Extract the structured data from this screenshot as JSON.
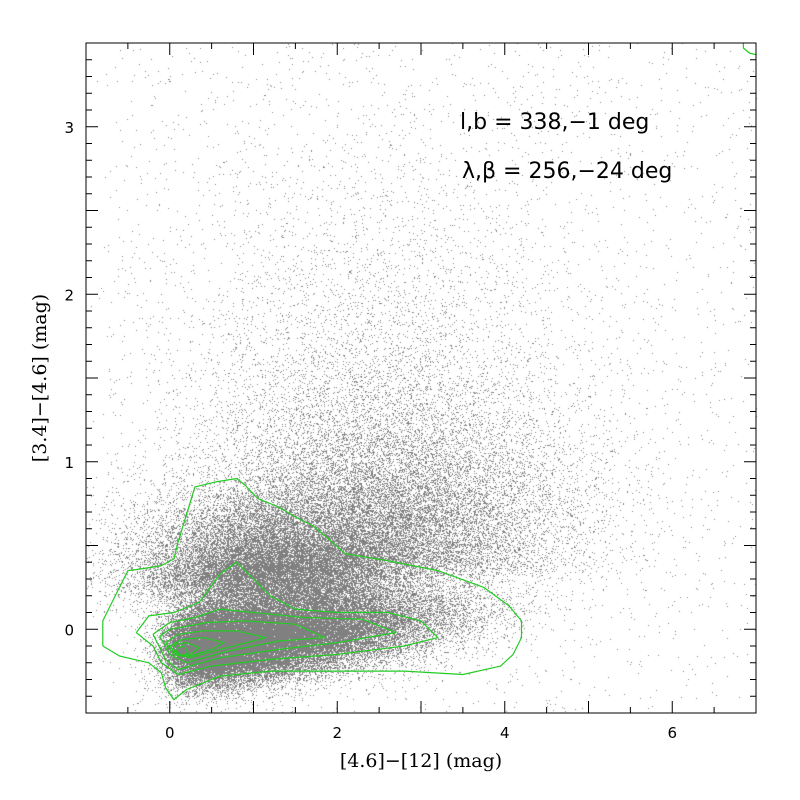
{
  "chart_data": {
    "type": "scatter",
    "title": "",
    "xlabel": "[4.6]−[12] (mag)",
    "ylabel": "[3.4]−[4.6] (mag)",
    "xlim": [
      -1,
      7
    ],
    "ylim": [
      -0.5,
      3.5
    ],
    "x_ticks": [
      0,
      2,
      4,
      6
    ],
    "y_ticks": [
      0,
      1,
      2,
      3
    ],
    "x_tick_labels": [
      "0",
      "2",
      "4",
      "6"
    ],
    "y_tick_labels": [
      "0",
      "1",
      "2",
      "3"
    ],
    "point_color": "#808080",
    "contour_color": "#22cc22",
    "annotations": [
      "l,b = 338,−1 deg",
      "λ,β = 256,−24 deg"
    ],
    "density_peak": {
      "x": 0.15,
      "y": -0.12
    },
    "contours": [
      {
        "level": 1,
        "points": [
          [
            -0.8,
            -0.1
          ],
          [
            -0.6,
            -0.16
          ],
          [
            -0.25,
            -0.2
          ],
          [
            -0.1,
            -0.26
          ],
          [
            -0.05,
            -0.35
          ],
          [
            0.05,
            -0.42
          ],
          [
            0.2,
            -0.36
          ],
          [
            0.6,
            -0.28
          ],
          [
            1.2,
            -0.25
          ],
          [
            2.0,
            -0.25
          ],
          [
            2.8,
            -0.25
          ],
          [
            3.5,
            -0.27
          ],
          [
            3.95,
            -0.22
          ],
          [
            4.1,
            -0.15
          ],
          [
            4.2,
            -0.05
          ],
          [
            4.2,
            0.05
          ],
          [
            4.05,
            0.14
          ],
          [
            3.75,
            0.25
          ],
          [
            3.2,
            0.35
          ],
          [
            2.6,
            0.41
          ],
          [
            2.1,
            0.45
          ],
          [
            1.85,
            0.56
          ],
          [
            1.7,
            0.62
          ],
          [
            1.5,
            0.67
          ],
          [
            1.3,
            0.73
          ],
          [
            1.05,
            0.78
          ],
          [
            0.9,
            0.86
          ],
          [
            0.8,
            0.9
          ],
          [
            0.55,
            0.88
          ],
          [
            0.3,
            0.85
          ],
          [
            0.1,
            0.52
          ],
          [
            0.05,
            0.42
          ],
          [
            -0.1,
            0.38
          ],
          [
            -0.35,
            0.36
          ],
          [
            -0.5,
            0.35
          ],
          [
            -0.55,
            0.3
          ],
          [
            -0.7,
            0.15
          ],
          [
            -0.8,
            0.05
          ],
          [
            -0.8,
            -0.1
          ]
        ]
      },
      {
        "level": 2,
        "points": [
          [
            -0.4,
            -0.02
          ],
          [
            -0.2,
            -0.1
          ],
          [
            -0.1,
            -0.2
          ],
          [
            0.1,
            -0.27
          ],
          [
            0.5,
            -0.22
          ],
          [
            1.2,
            -0.18
          ],
          [
            2.0,
            -0.15
          ],
          [
            2.8,
            -0.1
          ],
          [
            3.2,
            -0.05
          ],
          [
            3.0,
            0.05
          ],
          [
            2.6,
            0.1
          ],
          [
            2.0,
            0.1
          ],
          [
            1.5,
            0.12
          ],
          [
            1.2,
            0.2
          ],
          [
            1.0,
            0.3
          ],
          [
            0.8,
            0.4
          ],
          [
            0.6,
            0.33
          ],
          [
            0.35,
            0.16
          ],
          [
            0.05,
            0.1
          ],
          [
            -0.25,
            0.08
          ],
          [
            -0.4,
            -0.02
          ]
        ]
      },
      {
        "level": 3,
        "points": [
          [
            -0.2,
            -0.03
          ],
          [
            -0.05,
            -0.18
          ],
          [
            0.1,
            -0.24
          ],
          [
            0.6,
            -0.17
          ],
          [
            1.3,
            -0.12
          ],
          [
            2.0,
            -0.08
          ],
          [
            2.7,
            -0.02
          ],
          [
            2.3,
            0.06
          ],
          [
            1.6,
            0.07
          ],
          [
            1.0,
            0.1
          ],
          [
            0.6,
            0.12
          ],
          [
            0.3,
            0.07
          ],
          [
            0.0,
            0.04
          ],
          [
            -0.2,
            -0.03
          ]
        ]
      },
      {
        "level": 4,
        "points": [
          [
            -0.12,
            -0.04
          ],
          [
            0.0,
            -0.15
          ],
          [
            0.2,
            -0.2
          ],
          [
            0.7,
            -0.13
          ],
          [
            1.3,
            -0.07
          ],
          [
            1.85,
            -0.05
          ],
          [
            1.5,
            0.03
          ],
          [
            0.9,
            0.05
          ],
          [
            0.45,
            0.04
          ],
          [
            0.0,
            0.0
          ],
          [
            -0.12,
            -0.04
          ]
        ]
      },
      {
        "level": 5,
        "points": [
          [
            -0.05,
            -0.08
          ],
          [
            0.05,
            -0.15
          ],
          [
            0.25,
            -0.17
          ],
          [
            0.6,
            -0.12
          ],
          [
            1.0,
            -0.07
          ],
          [
            1.15,
            -0.05
          ],
          [
            0.8,
            -0.01
          ],
          [
            0.4,
            -0.01
          ],
          [
            0.1,
            -0.03
          ],
          [
            -0.05,
            -0.08
          ]
        ]
      },
      {
        "level": 6,
        "points": [
          [
            0.0,
            -0.1
          ],
          [
            0.08,
            -0.15
          ],
          [
            0.25,
            -0.16
          ],
          [
            0.5,
            -0.12
          ],
          [
            0.65,
            -0.08
          ],
          [
            0.4,
            -0.05
          ],
          [
            0.15,
            -0.06
          ],
          [
            0.0,
            -0.1
          ]
        ]
      },
      {
        "level": 7,
        "points": [
          [
            0.04,
            -0.12
          ],
          [
            0.12,
            -0.16
          ],
          [
            0.25,
            -0.15
          ],
          [
            0.35,
            -0.11
          ],
          [
            0.2,
            -0.08
          ],
          [
            0.06,
            -0.09
          ],
          [
            0.04,
            -0.12
          ]
        ]
      },
      {
        "level": 8,
        "points": [
          [
            0.08,
            -0.13
          ],
          [
            0.14,
            -0.16
          ],
          [
            0.22,
            -0.14
          ],
          [
            0.18,
            -0.1
          ],
          [
            0.1,
            -0.11
          ],
          [
            0.08,
            -0.13
          ]
        ]
      },
      {
        "level": 1,
        "points": [
          [
            6.85,
            3.5
          ],
          [
            6.85,
            3.47
          ],
          [
            6.92,
            3.44
          ],
          [
            7.0,
            3.43
          ]
        ]
      }
    ]
  }
}
